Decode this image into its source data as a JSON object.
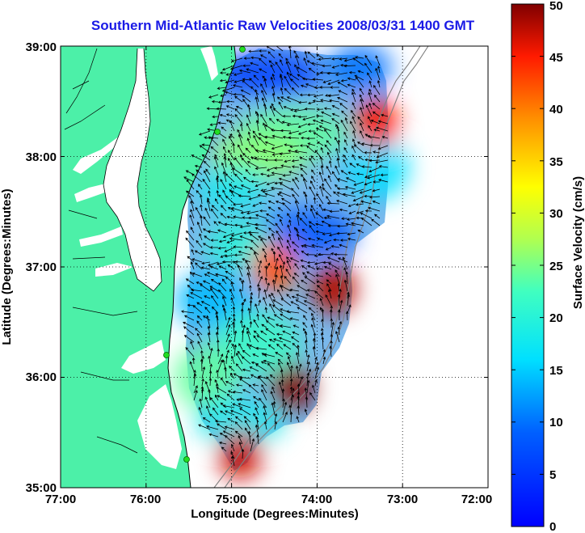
{
  "title": "Southern Mid-Atlantic Raw Velocities 2008/03/31 1400 GMT",
  "x_axis": {
    "label": "Longitude (Degrees:Minutes)",
    "ticks": [
      "77:00",
      "76:00",
      "75:00",
      "74:00",
      "73:00",
      "72:00"
    ]
  },
  "y_axis": {
    "label": "Latitude (Degrees:Minutes)",
    "ticks": [
      "39:00",
      "38:00",
      "37:00",
      "36:00",
      "35:00"
    ]
  },
  "colorbar": {
    "label": "Surface Velocity (cm/s)",
    "ticks": [
      "0",
      "5",
      "10",
      "15",
      "20",
      "25",
      "30",
      "35",
      "40",
      "45",
      "50"
    ],
    "min": 0,
    "max": 50,
    "colormap": "jet"
  },
  "map": {
    "lon_range": [
      -77,
      -72
    ],
    "lat_range": [
      35,
      39
    ],
    "grid": true,
    "land_color": "#4cf0a8",
    "contour_color": "#7f7f7f",
    "vector_color": "#000000",
    "radar_station_color": "#22cc22",
    "high_speed_zones": [
      {
        "lon": -73.3,
        "lat": 38.3,
        "speed": 45
      },
      {
        "lon": -74.5,
        "lat": 37.0,
        "speed": 42
      },
      {
        "lon": -73.8,
        "lat": 36.8,
        "speed": 48
      },
      {
        "lon": -74.3,
        "lat": 35.9,
        "speed": 50
      },
      {
        "lon": -74.9,
        "lat": 35.3,
        "speed": 47
      }
    ]
  }
}
